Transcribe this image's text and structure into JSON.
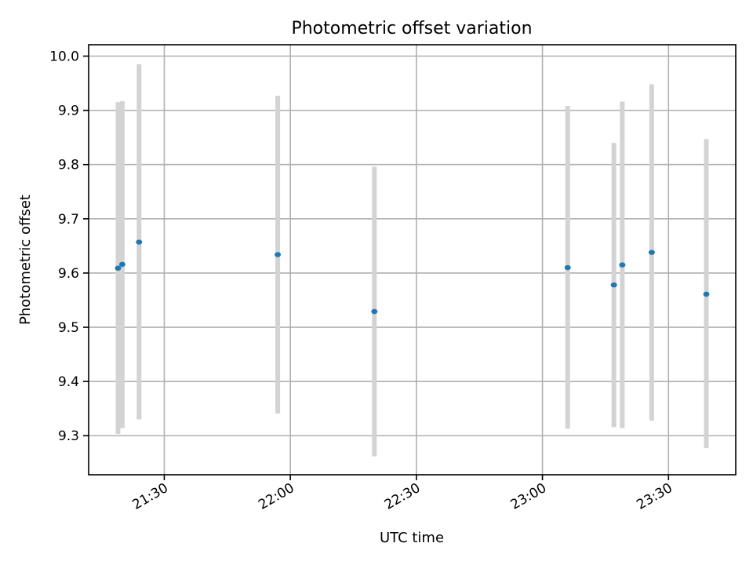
{
  "chart_data": {
    "type": "scatter",
    "title": "Photometric offset variation",
    "xlabel": "UTC time",
    "ylabel": "Photometric offset",
    "x_range": [
      "21:12",
      "23:46"
    ],
    "ylim": [
      9.228,
      10.021
    ],
    "x_ticks": [
      "21:30",
      "22:00",
      "22:30",
      "23:00",
      "23:30"
    ],
    "y_ticks": [
      "9.3",
      "9.4",
      "9.5",
      "9.6",
      "9.7",
      "9.8",
      "9.9",
      "10.0"
    ],
    "grid": true,
    "point_color": "#1f77b4",
    "errorbar_color": "#d3d3d3",
    "points": [
      {
        "time": "21:19",
        "y": 9.609,
        "ylow": 9.303,
        "yhigh": 9.915
      },
      {
        "time": "21:20",
        "y": 9.616,
        "ylow": 9.314,
        "yhigh": 9.917
      },
      {
        "time": "21:24",
        "y": 9.657,
        "ylow": 9.33,
        "yhigh": 9.985
      },
      {
        "time": "21:57",
        "y": 9.634,
        "ylow": 9.341,
        "yhigh": 9.927
      },
      {
        "time": "22:20",
        "y": 9.529,
        "ylow": 9.262,
        "yhigh": 9.796
      },
      {
        "time": "23:06",
        "y": 9.61,
        "ylow": 9.313,
        "yhigh": 9.908
      },
      {
        "time": "23:17",
        "y": 9.578,
        "ylow": 9.316,
        "yhigh": 9.84
      },
      {
        "time": "23:19",
        "y": 9.615,
        "ylow": 9.314,
        "yhigh": 9.916
      },
      {
        "time": "23:26",
        "y": 9.638,
        "ylow": 9.328,
        "yhigh": 9.948
      },
      {
        "time": "23:39",
        "y": 9.561,
        "ylow": 9.277,
        "yhigh": 9.847
      }
    ]
  }
}
